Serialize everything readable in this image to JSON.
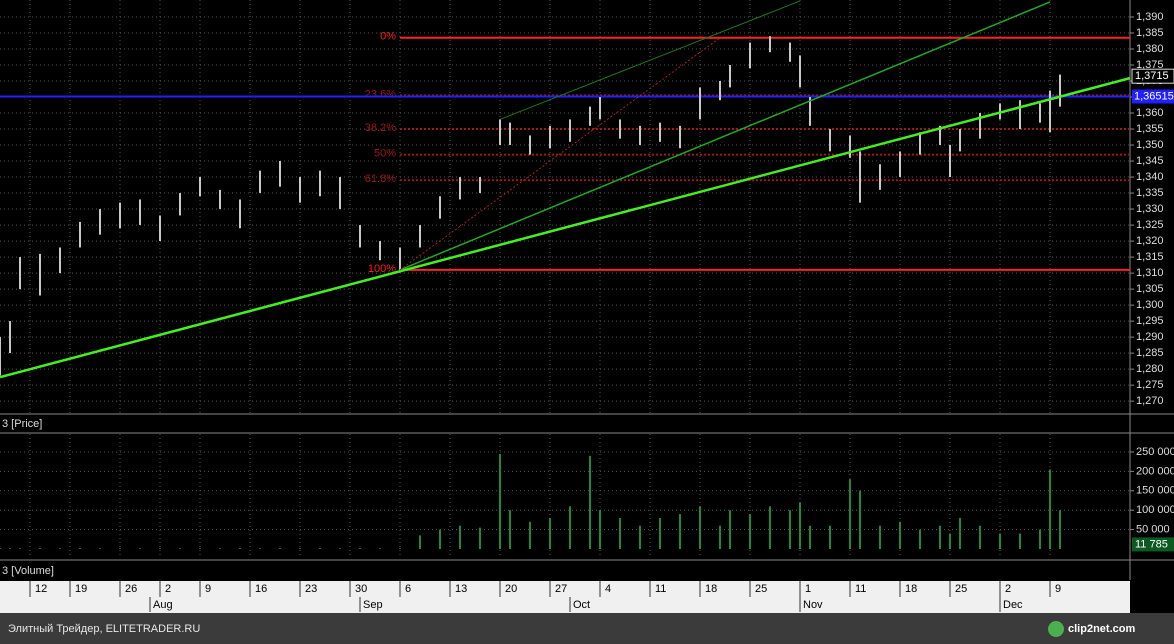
{
  "chart_data": {
    "type": "hilo",
    "price_label": "3 [Price]",
    "x": [
      0,
      1,
      2,
      4,
      6,
      8,
      10,
      12,
      14,
      16,
      18,
      20,
      22,
      24,
      26,
      28,
      30,
      32,
      34,
      36,
      38,
      40,
      42,
      44,
      46,
      48,
      50,
      51,
      53,
      55,
      57,
      59,
      60,
      62,
      64,
      66,
      68,
      70,
      72,
      73,
      75,
      77,
      79,
      80,
      81,
      83,
      85,
      86,
      88,
      90,
      92,
      94,
      95,
      96,
      98,
      100,
      102,
      104,
      105,
      106
    ],
    "high": [
      1.29,
      1.295,
      1.315,
      1.316,
      1.318,
      1.326,
      1.33,
      1.332,
      1.333,
      1.328,
      1.335,
      1.34,
      1.336,
      1.333,
      1.342,
      1.345,
      1.34,
      1.342,
      1.34,
      1.325,
      1.32,
      1.318,
      1.325,
      1.334,
      1.34,
      1.34,
      1.358,
      1.357,
      1.353,
      1.356,
      1.358,
      1.362,
      1.365,
      1.358,
      1.356,
      1.357,
      1.356,
      1.368,
      1.37,
      1.375,
      1.382,
      1.384,
      1.382,
      1.378,
      1.365,
      1.355,
      1.353,
      1.348,
      1.344,
      1.348,
      1.354,
      1.356,
      1.35,
      1.355,
      1.36,
      1.363,
      1.364,
      1.363,
      1.367,
      1.372
    ],
    "low": [
      1.278,
      1.285,
      1.305,
      1.303,
      1.31,
      1.318,
      1.322,
      1.324,
      1.325,
      1.32,
      1.328,
      1.334,
      1.33,
      1.324,
      1.335,
      1.337,
      1.332,
      1.334,
      1.33,
      1.318,
      1.314,
      1.311,
      1.318,
      1.327,
      1.333,
      1.335,
      1.35,
      1.35,
      1.347,
      1.349,
      1.351,
      1.356,
      1.358,
      1.352,
      1.35,
      1.351,
      1.349,
      1.358,
      1.364,
      1.368,
      1.374,
      1.379,
      1.376,
      1.368,
      1.356,
      1.348,
      1.346,
      1.332,
      1.336,
      1.34,
      1.347,
      1.35,
      1.34,
      1.348,
      1.352,
      1.358,
      1.355,
      1.357,
      1.354,
      1.362
    ],
    "color": "#c8c8c8",
    "xlim": [
      0,
      113
    ],
    "xticks": [
      {
        "value": 3,
        "label": "12"
      },
      {
        "value": 7,
        "label": "19"
      },
      {
        "value": 12,
        "label": "26"
      },
      {
        "value": 16,
        "label": "2"
      },
      {
        "value": 20,
        "label": "9"
      },
      {
        "value": 25,
        "label": "16"
      },
      {
        "value": 30,
        "label": "23"
      },
      {
        "value": 35,
        "label": "30"
      },
      {
        "value": 40,
        "label": "6"
      },
      {
        "value": 45,
        "label": "13"
      },
      {
        "value": 50,
        "label": "20"
      },
      {
        "value": 55,
        "label": "27"
      },
      {
        "value": 60,
        "label": "4"
      },
      {
        "value": 65,
        "label": "11"
      },
      {
        "value": 70,
        "label": "18"
      },
      {
        "value": 75,
        "label": "25"
      },
      {
        "value": 80,
        "label": "1"
      },
      {
        "value": 85,
        "label": "11"
      },
      {
        "value": 90,
        "label": "18"
      },
      {
        "value": 95,
        "label": "25"
      },
      {
        "value": 100,
        "label": "2"
      },
      {
        "value": 105,
        "label": "9"
      }
    ],
    "months": [
      {
        "value": 15,
        "label": "Aug"
      },
      {
        "value": 36,
        "label": "Sep"
      },
      {
        "value": 57,
        "label": "Oct"
      },
      {
        "value": 80,
        "label": "Nov"
      },
      {
        "value": 100,
        "label": "Dec"
      }
    ],
    "ylim": [
      1.2663,
      1.3953
    ],
    "yticks": [
      {
        "value": 1.27,
        "label": "1,270"
      },
      {
        "value": 1.275,
        "label": "1,275"
      },
      {
        "value": 1.28,
        "label": "1,280"
      },
      {
        "value": 1.285,
        "label": "1,285"
      },
      {
        "value": 1.29,
        "label": "1,290"
      },
      {
        "value": 1.295,
        "label": "1,295"
      },
      {
        "value": 1.3,
        "label": "1,300"
      },
      {
        "value": 1.305,
        "label": "1,305"
      },
      {
        "value": 1.31,
        "label": "1,310"
      },
      {
        "value": 1.315,
        "label": "1,315"
      },
      {
        "value": 1.32,
        "label": "1,320"
      },
      {
        "value": 1.325,
        "label": "1,325"
      },
      {
        "value": 1.33,
        "label": "1,330"
      },
      {
        "value": 1.335,
        "label": "1,335"
      },
      {
        "value": 1.34,
        "label": "1,340"
      },
      {
        "value": 1.345,
        "label": "1,345"
      },
      {
        "value": 1.35,
        "label": "1,350"
      },
      {
        "value": 1.355,
        "label": "1,355"
      },
      {
        "value": 1.36,
        "label": "1,360"
      },
      {
        "value": 1.365,
        "label": "1,365"
      },
      {
        "value": 1.37,
        "label": "1,370"
      },
      {
        "value": 1.375,
        "label": "1,375"
      },
      {
        "value": 1.38,
        "label": "1,380"
      },
      {
        "value": 1.385,
        "label": "1,385"
      },
      {
        "value": 1.39,
        "label": "1,390"
      }
    ],
    "grid": true,
    "last_price": {
      "value": 1.3715,
      "label": "1,3715"
    },
    "level_line": {
      "value": 1.36515,
      "label": "1,36515",
      "color": "#2020ff"
    },
    "fib": [
      {
        "value": 1.3835,
        "label": "0%",
        "color": "#ff2020"
      },
      {
        "value": 1.3655,
        "label": "23.6%",
        "color": "#a01818"
      },
      {
        "value": 1.355,
        "label": "38.2%",
        "color": "#a01818"
      },
      {
        "value": 1.347,
        "label": "50%",
        "color": "#a01818"
      },
      {
        "value": 1.339,
        "label": "61.8%",
        "color": "#a01818"
      },
      {
        "value": 1.311,
        "label": "100%",
        "color": "#ff2020"
      }
    ],
    "fib_start": 40,
    "trendlines": [
      {
        "x": [
          0,
          113
        ],
        "y": [
          1.2775,
          1.3709
        ],
        "color": "#44ee22"
      },
      {
        "x": [
          40,
          105
        ],
        "y": [
          1.311,
          1.3947
        ],
        "color": "#22aa22"
      },
      {
        "x": [
          50,
          80
        ],
        "y": [
          1.358,
          1.395
        ],
        "color": "#1c7a1c"
      },
      {
        "x": [
          40,
          72
        ],
        "y": [
          1.311,
          1.3835
        ],
        "color": "#aa2020"
      }
    ],
    "volume": {
      "label": "3 [Volume]",
      "values": [
        2000,
        2000,
        2000,
        2000,
        2000,
        2000,
        2000,
        2000,
        2000,
        2000,
        2000,
        2000,
        2000,
        2000,
        2000,
        2000,
        2000,
        2000,
        2000,
        2000,
        2000,
        2000,
        35000,
        50000,
        60000,
        55000,
        245000,
        100000,
        70000,
        80000,
        110000,
        240000,
        100000,
        80000,
        60000,
        80000,
        90000,
        110000,
        60000,
        100000,
        90000,
        110000,
        100000,
        120000,
        60000,
        60000,
        180000,
        150000,
        60000,
        70000,
        50000,
        60000,
        40000,
        80000,
        60000,
        40000,
        40000,
        50000,
        205000,
        100000
      ],
      "color": "#1f8a3a",
      "ylim": [
        0,
        286000
      ],
      "yticks": [
        {
          "value": 50000,
          "label": "50 000"
        },
        {
          "value": 100000,
          "label": "100 000"
        },
        {
          "value": 150000,
          "label": "150 000"
        },
        {
          "value": 200000,
          "label": "200 000"
        },
        {
          "value": 250000,
          "label": "250 000"
        }
      ],
      "current": {
        "value": 11785,
        "label": "11 785"
      }
    },
    "footer": "Элитный Трейдер, ELITETRADER.RU",
    "watermark": "clip2net.com"
  }
}
